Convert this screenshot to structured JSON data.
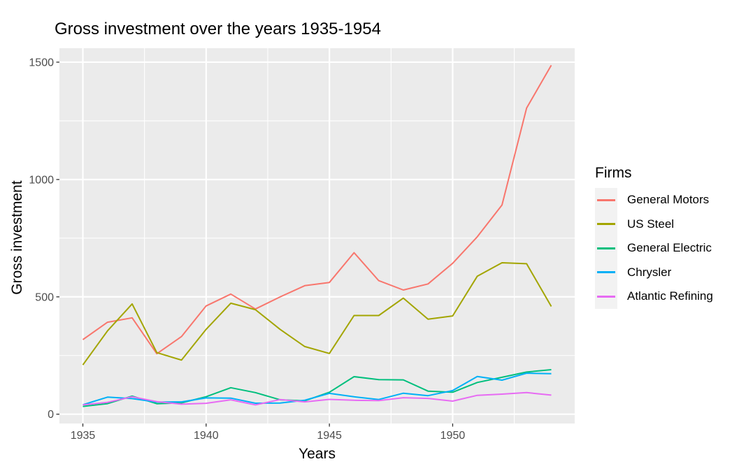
{
  "chart_data": {
    "type": "line",
    "title": "Gross investment over the years 1935-1954",
    "xlabel": "Years",
    "ylabel": "Gross investment",
    "x": [
      1935,
      1936,
      1937,
      1938,
      1939,
      1940,
      1941,
      1942,
      1943,
      1944,
      1945,
      1946,
      1947,
      1948,
      1949,
      1950,
      1951,
      1952,
      1953,
      1954
    ],
    "series": [
      {
        "name": "General Motors",
        "color": "#F8766D",
        "values": [
          317.6,
          391.8,
          410.6,
          257.7,
          330.8,
          461.2,
          512.0,
          448.0,
          499.6,
          547.5,
          561.2,
          688.1,
          568.9,
          529.2,
          555.1,
          642.9,
          755.9,
          891.2,
          1304.4,
          1486.7
        ]
      },
      {
        "name": "US Steel",
        "color": "#A3A500",
        "values": [
          209.9,
          355.3,
          469.9,
          262.3,
          230.4,
          361.6,
          472.8,
          445.6,
          361.6,
          288.2,
          258.7,
          420.3,
          420.5,
          494.5,
          405.1,
          418.8,
          588.2,
          645.2,
          641.0,
          459.3
        ]
      },
      {
        "name": "General Electric",
        "color": "#00BF7D",
        "values": [
          33.1,
          45.0,
          77.2,
          44.6,
          48.1,
          74.4,
          113.0,
          91.9,
          61.3,
          56.8,
          93.6,
          159.9,
          147.2,
          146.3,
          98.3,
          93.5,
          135.2,
          157.3,
          179.5,
          189.6
        ]
      },
      {
        "name": "Chrysler",
        "color": "#00B0F6",
        "values": [
          40.29,
          72.76,
          66.26,
          51.6,
          52.41,
          69.41,
          68.35,
          46.8,
          47.4,
          59.57,
          88.78,
          74.12,
          62.68,
          89.36,
          78.98,
          100.66,
          160.62,
          145.0,
          174.93,
          172.49
        ]
      },
      {
        "name": "Atlantic Refining",
        "color": "#E76BF3",
        "values": [
          39.68,
          50.73,
          74.24,
          53.51,
          42.65,
          46.48,
          61.4,
          39.67,
          62.24,
          52.32,
          63.21,
          59.37,
          58.02,
          70.34,
          67.42,
          55.74,
          80.3,
          85.4,
          91.9,
          81.43
        ]
      }
    ],
    "legend": {
      "title": "Firms",
      "position": "right"
    },
    "x_ticks": [
      1935,
      1940,
      1945,
      1950
    ],
    "y_ticks": [
      0,
      500,
      1000,
      1500
    ],
    "x_minor_ticks": [
      1937.5,
      1942.5,
      1947.5,
      1952.5
    ],
    "y_minor_ticks": [
      250,
      750,
      1250
    ],
    "xlim": [
      1934.05,
      1954.95
    ],
    "ylim": [
      -39.6,
      1559.4
    ],
    "grid": "on",
    "colors": {
      "panel_bg": "#EBEBEB",
      "grid": "#FFFFFF",
      "tick_label": "#4D4D4D",
      "tick_mark": "#333333",
      "text": "#000000",
      "legend_key_bg": "#F2F2F2"
    }
  }
}
